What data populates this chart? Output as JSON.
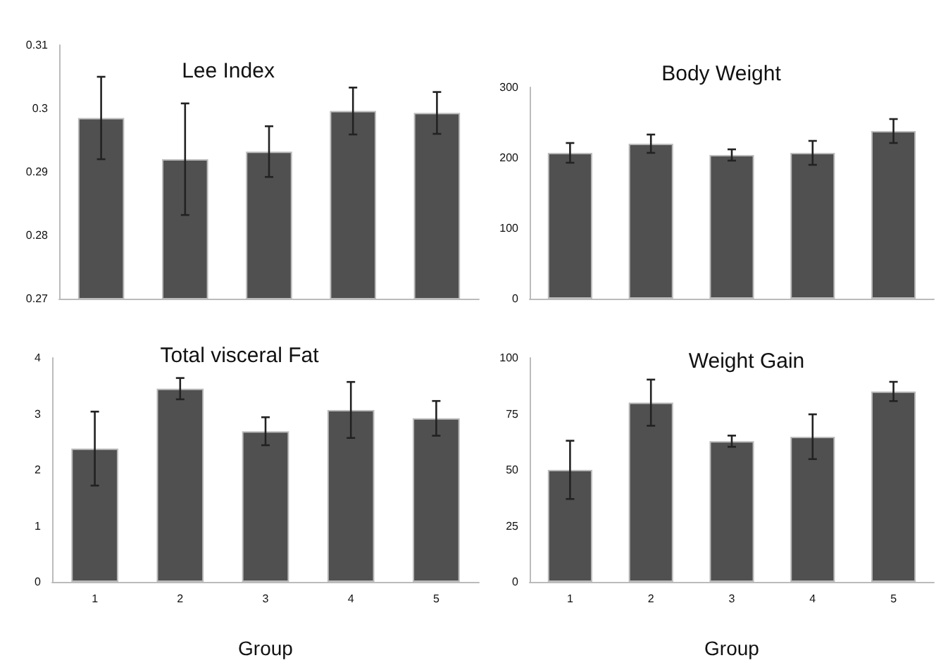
{
  "chart_data": [
    {
      "type": "bar",
      "title": "Lee Index",
      "categories": [
        "1",
        "2",
        "3",
        "4",
        "5"
      ],
      "values": [
        0.2985,
        0.292,
        0.2932,
        0.2996,
        0.2993
      ],
      "errors": [
        0.0065,
        0.0088,
        0.004,
        0.0037,
        0.0033
      ],
      "color": "#505050",
      "ylim": [
        0.27,
        0.31
      ],
      "yticks": [
        0.27,
        0.28,
        0.29,
        0.3,
        0.31
      ],
      "tick_labels": "y"
    },
    {
      "type": "bar",
      "title": "Body Weight",
      "categories": [
        "1",
        "2",
        "3",
        "4",
        "5"
      ],
      "values": [
        207,
        220,
        204,
        207,
        238
      ],
      "errors": [
        14,
        13,
        8,
        17,
        17
      ],
      "color": "#505050",
      "ylim": [
        0,
        300
      ],
      "yticks": [
        0,
        100,
        200,
        300
      ],
      "tick_labels": "y"
    },
    {
      "type": "bar",
      "title": "Total visceral Fat",
      "xlabel": "Group",
      "categories": [
        "1",
        "2",
        "3",
        "4",
        "5"
      ],
      "values": [
        2.38,
        3.45,
        2.69,
        3.07,
        2.92
      ],
      "errors": [
        0.66,
        0.19,
        0.25,
        0.5,
        0.31
      ],
      "color": "#505050",
      "ylim": [
        0,
        4
      ],
      "yticks": [
        0,
        1,
        2,
        3,
        4
      ]
    },
    {
      "type": "bar",
      "title": "Weight Gain",
      "xlabel": "Group",
      "categories": [
        "1",
        "2",
        "3",
        "4",
        "5"
      ],
      "values": [
        50,
        80,
        62.8,
        64.8,
        85
      ],
      "errors": [
        13,
        10.3,
        2.5,
        10,
        4.3
      ],
      "color": "#505050",
      "ylim": [
        0,
        100
      ],
      "yticks": [
        0,
        25,
        50,
        75,
        100
      ]
    }
  ]
}
